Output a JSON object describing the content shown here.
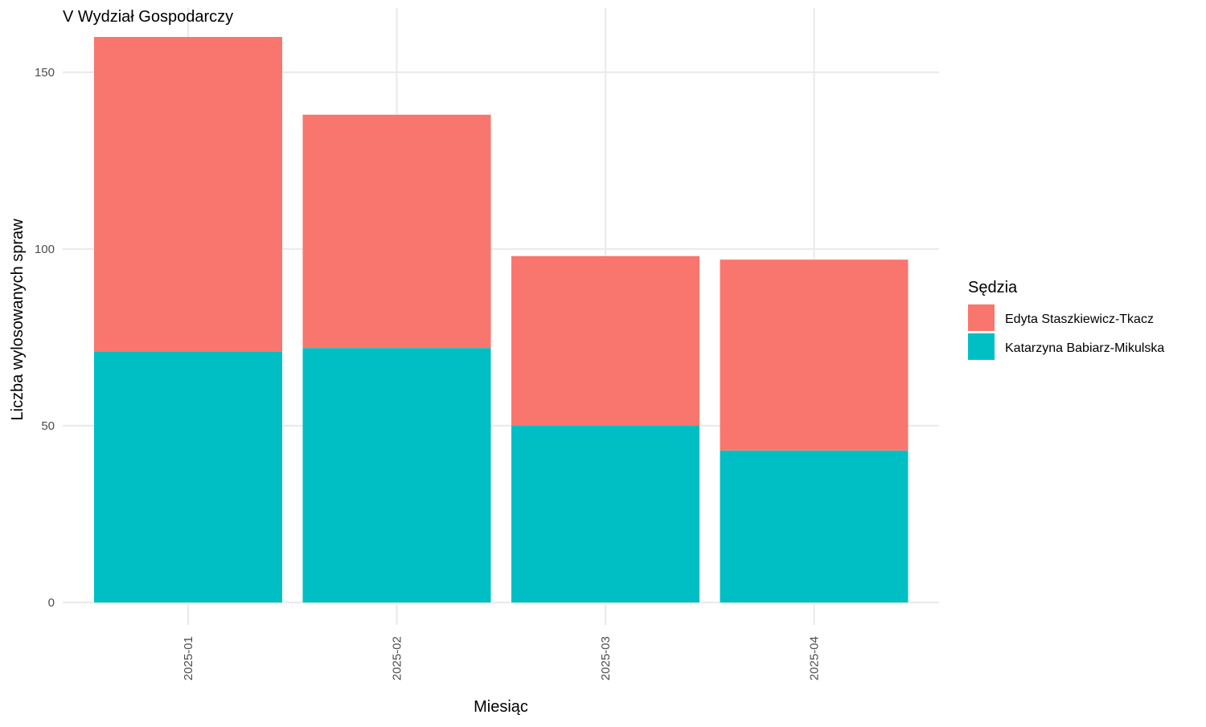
{
  "chart_data": {
    "type": "bar",
    "stacked": true,
    "title": "V Wydział Gospodarczy",
    "xlabel": "Miesiąc",
    "ylabel": "Liczba wylosowanych spraw",
    "categories": [
      "2025-01",
      "2025-02",
      "2025-03",
      "2025-04"
    ],
    "series": [
      {
        "name": "Katarzyna Babiarz-Mikulska",
        "color": "#00BFC4",
        "values": [
          71,
          72,
          50,
          43
        ]
      },
      {
        "name": "Edyta Staszkiewicz-Tkacz",
        "color": "#F8766D",
        "values": [
          89,
          66,
          48,
          54
        ]
      }
    ],
    "ylim": [
      0,
      160
    ],
    "yticks": [
      0,
      50,
      100,
      150
    ],
    "grid": true,
    "legend": {
      "title": "Sędzia",
      "placement": "right",
      "order": [
        "Edyta Staszkiewicz-Tkacz",
        "Katarzyna Babiarz-Mikulska"
      ]
    }
  }
}
